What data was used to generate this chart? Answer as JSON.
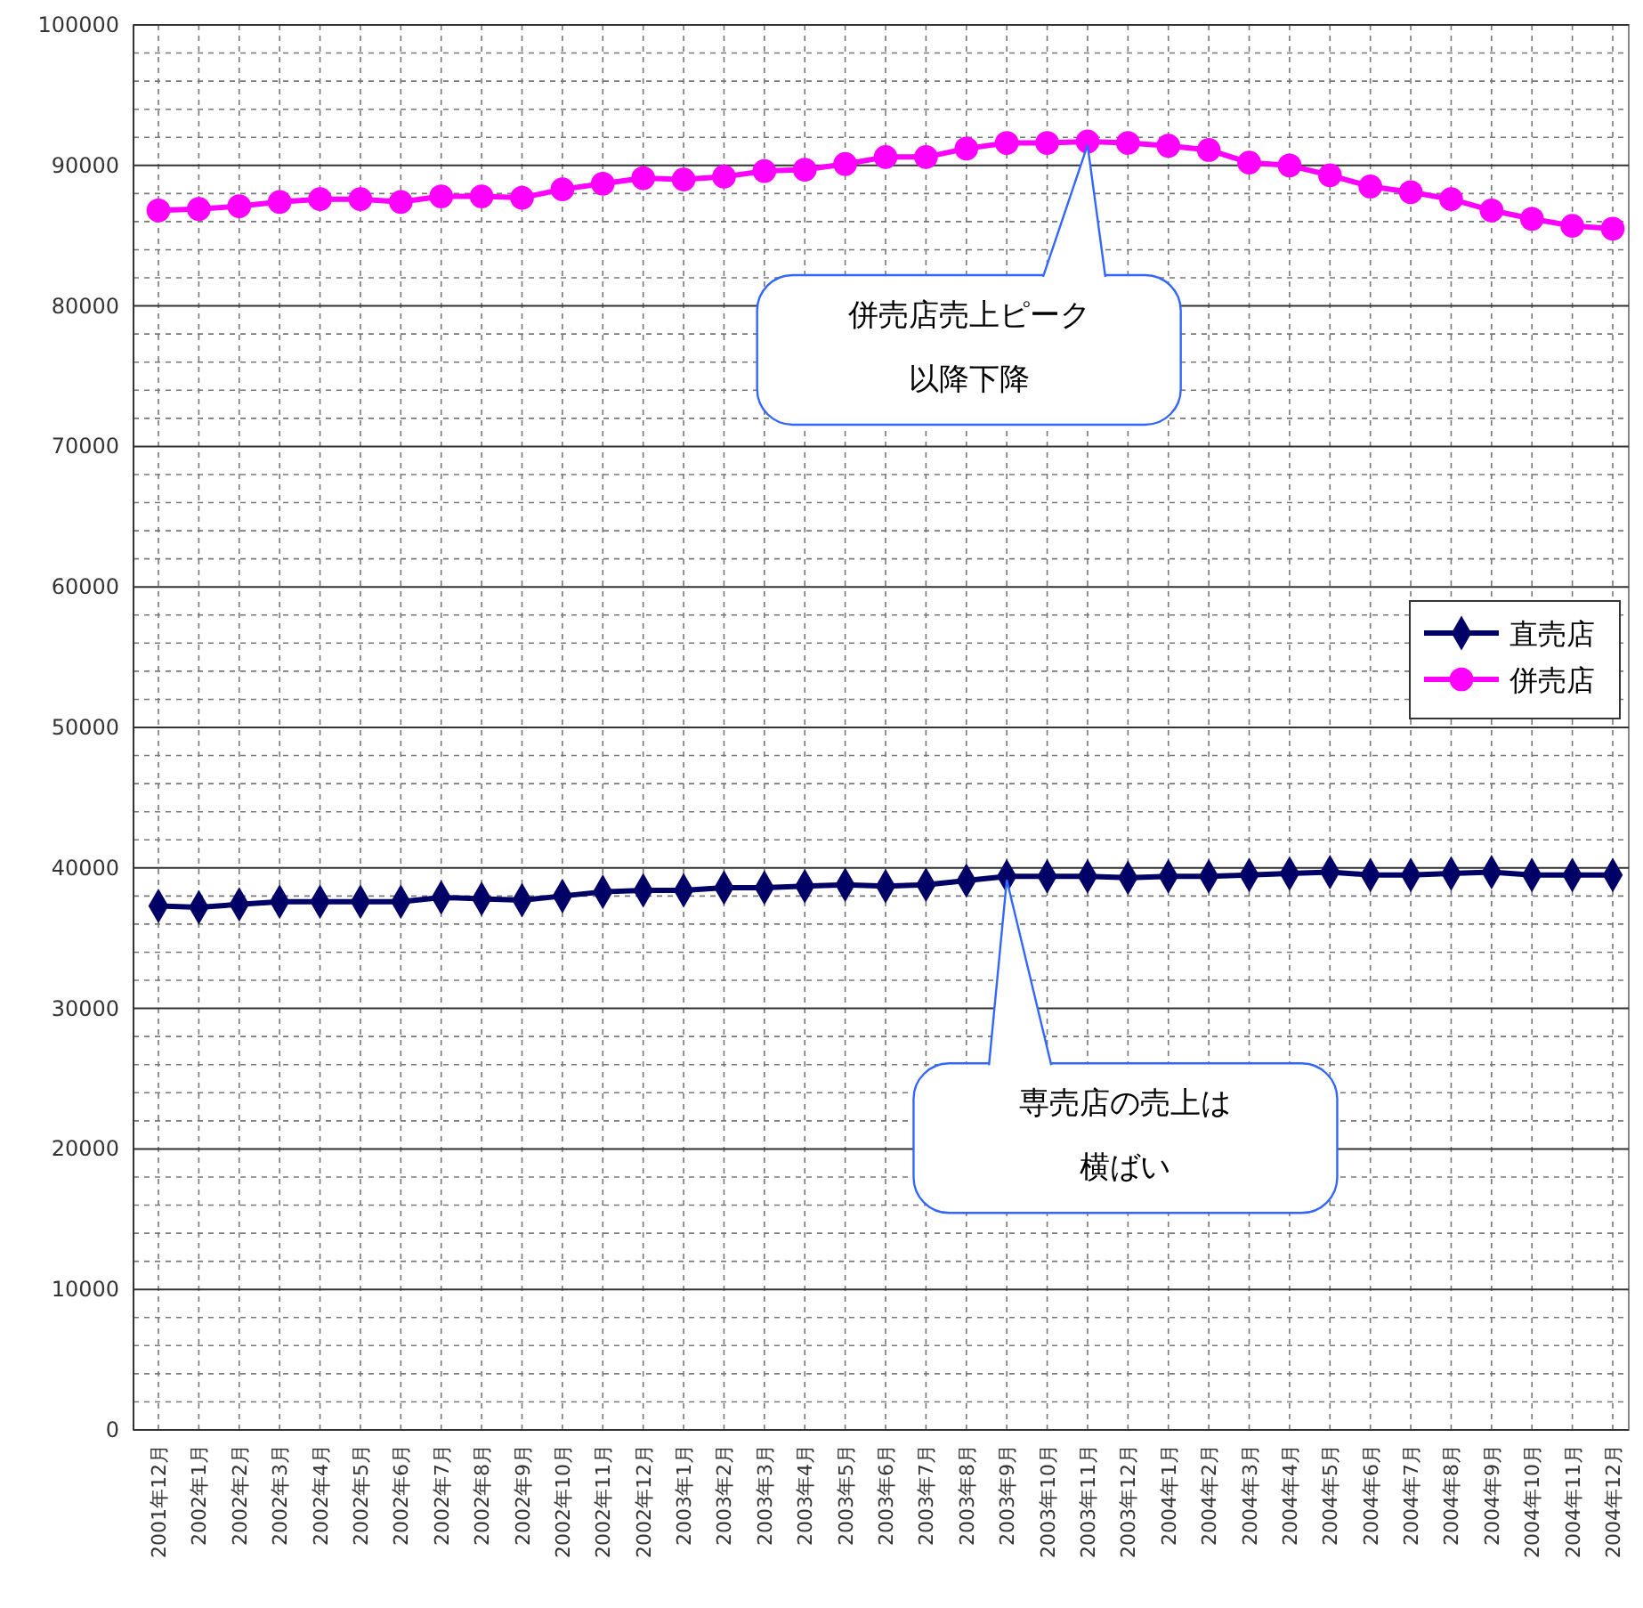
{
  "chart_data": {
    "type": "line",
    "categories": [
      "2001年12月",
      "2002年1月",
      "2002年2月",
      "2002年3月",
      "2002年4月",
      "2002年5月",
      "2002年6月",
      "2002年7月",
      "2002年8月",
      "2002年9月",
      "2002年10月",
      "2002年11月",
      "2002年12月",
      "2003年1月",
      "2003年2月",
      "2003年3月",
      "2003年4月",
      "2003年5月",
      "2003年6月",
      "2003年7月",
      "2003年8月",
      "2003年9月",
      "2003年10月",
      "2003年11月",
      "2003年12月",
      "2004年1月",
      "2004年2月",
      "2004年3月",
      "2004年4月",
      "2004年5月",
      "2004年6月",
      "2004年7月",
      "2004年8月",
      "2004年9月",
      "2004年10月",
      "2004年11月",
      "2004年12月"
    ],
    "series": [
      {
        "name": "直売店",
        "color": "#000066",
        "marker": "diamond",
        "values": [
          37300,
          37200,
          37400,
          37600,
          37600,
          37600,
          37600,
          37900,
          37800,
          37700,
          38000,
          38300,
          38400,
          38400,
          38600,
          38600,
          38700,
          38800,
          38700,
          38800,
          39100,
          39400,
          39400,
          39400,
          39300,
          39400,
          39400,
          39500,
          39600,
          39700,
          39500,
          39500,
          39600,
          39700,
          39500,
          39500,
          39500
        ]
      },
      {
        "name": "併売店",
        "color": "#ff00ff",
        "marker": "circle",
        "values": [
          86800,
          86900,
          87100,
          87400,
          87600,
          87600,
          87400,
          87800,
          87800,
          87700,
          88300,
          88700,
          89100,
          89000,
          89200,
          89600,
          89700,
          90100,
          90600,
          90600,
          91200,
          91600,
          91600,
          91700,
          91600,
          91400,
          91100,
          90200,
          90000,
          89300,
          88500,
          88100,
          87600,
          86800,
          86200,
          85700,
          85500
        ]
      }
    ],
    "ylim": [
      0,
      100000
    ],
    "yticks": [
      0,
      10000,
      20000,
      30000,
      40000,
      50000,
      60000,
      70000,
      80000,
      90000,
      100000
    ],
    "grid": true,
    "legend": "right",
    "annotations": [
      {
        "text": "併売店売上ピーク以降下降",
        "x": "2003年11月",
        "y": 91700
      },
      {
        "text": "専売店の売上は横ばい",
        "x": "2003年9月",
        "y": 39400
      }
    ]
  }
}
